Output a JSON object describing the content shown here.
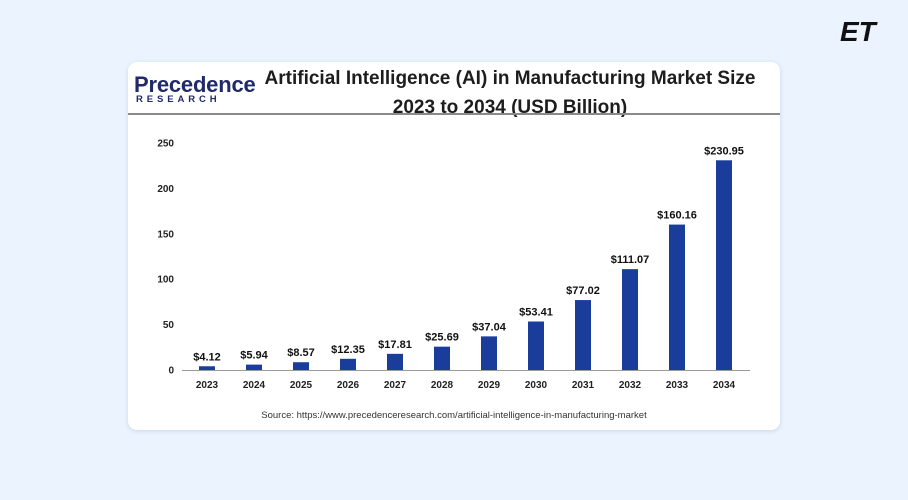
{
  "colors": {
    "background": "#eaf3fe",
    "bar": "#1a3d9c",
    "brand": "#1f2a68"
  },
  "et_logo": {
    "text": "ET"
  },
  "brand": {
    "name": "Precedence",
    "sub": "RESEARCH"
  },
  "source_text": "Source: https://www.precedenceresearch.com/artificial-intelligence-in-manufacturing-market",
  "chart_data": {
    "type": "bar",
    "title_line1": "Artificial Intelligence (AI) in Manufacturing Market Size",
    "title_line2": "2023 to 2034 (USD Billion)",
    "categories": [
      "2023",
      "2024",
      "2025",
      "2026",
      "2027",
      "2028",
      "2029",
      "2030",
      "2031",
      "2032",
      "2033",
      "2034"
    ],
    "values": [
      4.12,
      5.94,
      8.57,
      12.35,
      17.81,
      25.69,
      37.04,
      53.41,
      77.02,
      111.07,
      160.16,
      230.95
    ],
    "labels": [
      "$4.12",
      "$5.94",
      "$8.57",
      "$12.35",
      "$17.81",
      "$25.69",
      "$37.04",
      "$53.41",
      "$77.02",
      "$111.07",
      "$160.16",
      "$230.95"
    ],
    "yticks": [
      0,
      50,
      100,
      150,
      200,
      250
    ],
    "ylim": [
      0,
      250
    ],
    "xlabel": "",
    "ylabel": "",
    "grid": false
  }
}
